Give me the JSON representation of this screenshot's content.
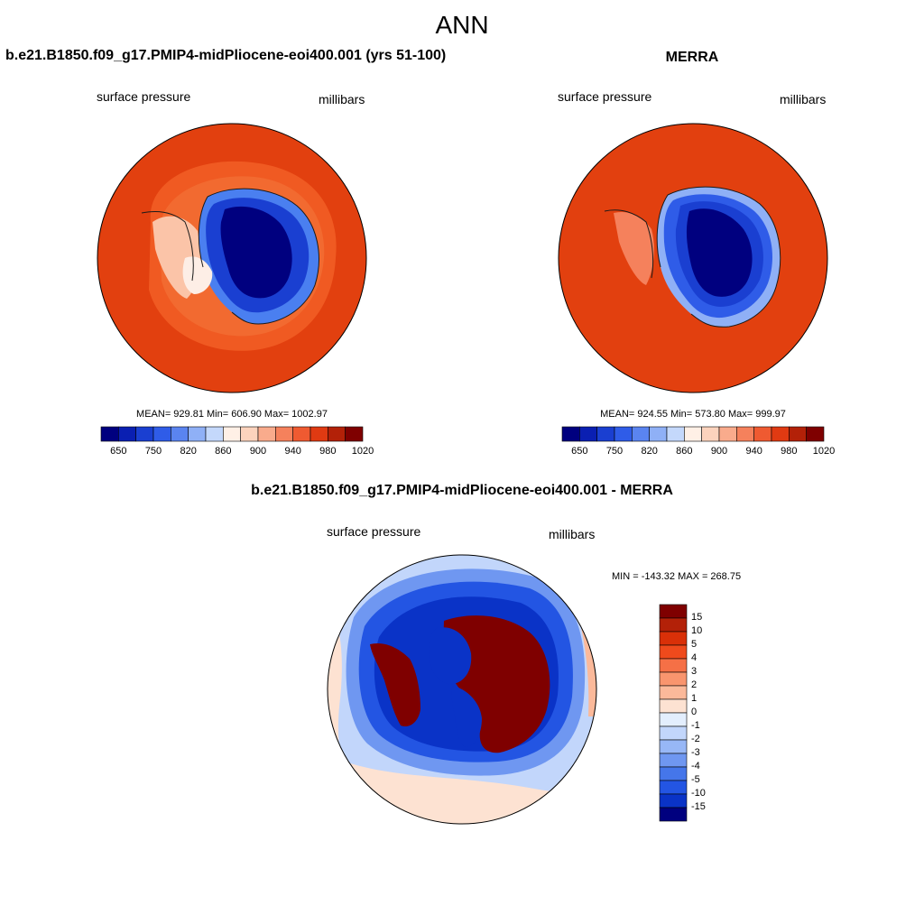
{
  "figure": {
    "season": "ANN"
  },
  "panels": {
    "model": {
      "title": "b.e21.B1850.f09_g17.PMIP4-midPliocene-eoi400.001 (yrs 51-100)",
      "left_label": "surface pressure",
      "right_label": "millibars",
      "stats": "MEAN= 929.81  Min= 606.90  Max= 1002.97"
    },
    "obs": {
      "title": "MERRA",
      "left_label": "surface pressure",
      "right_label": "millibars",
      "stats": "MEAN= 924.55  Min= 573.80  Max= 999.97"
    },
    "diff": {
      "title": "b.e21.B1850.f09_g17.PMIP4-midPliocene-eoi400.001 - MERRA",
      "left_label": "surface pressure",
      "right_label": "millibars",
      "stats": "MIN = -143.32 MAX = 268.75"
    }
  },
  "colorbars": {
    "absolute": {
      "colors": [
        "#00007f",
        "#0a1fb2",
        "#1a3fd1",
        "#2f5ce8",
        "#5a84f0",
        "#8fb0f6",
        "#c4d8fb",
        "#fff0e6",
        "#fcd3bd",
        "#f9ab8c",
        "#f5815c",
        "#ef5a31",
        "#e03a12",
        "#b32108",
        "#7f0000"
      ],
      "tick_labels": [
        "650",
        "750",
        "820",
        "860",
        "900",
        "940",
        "980",
        "1020"
      ]
    },
    "difference": {
      "colors": [
        "#7f0000",
        "#b32108",
        "#d93008",
        "#ef4a1c",
        "#f57046",
        "#f9956e",
        "#fbb99a",
        "#fde2d2",
        "#e3eefd",
        "#c2d6fb",
        "#97b7f6",
        "#6f97f1",
        "#4576ea",
        "#2355e3",
        "#0a33c7",
        "#00007f"
      ],
      "tick_labels": [
        "15",
        "10",
        "5",
        "4",
        "3",
        "2",
        "1",
        "0",
        "-1",
        "-2",
        "-3",
        "-4",
        "-5",
        "-10",
        "-15"
      ]
    }
  }
}
